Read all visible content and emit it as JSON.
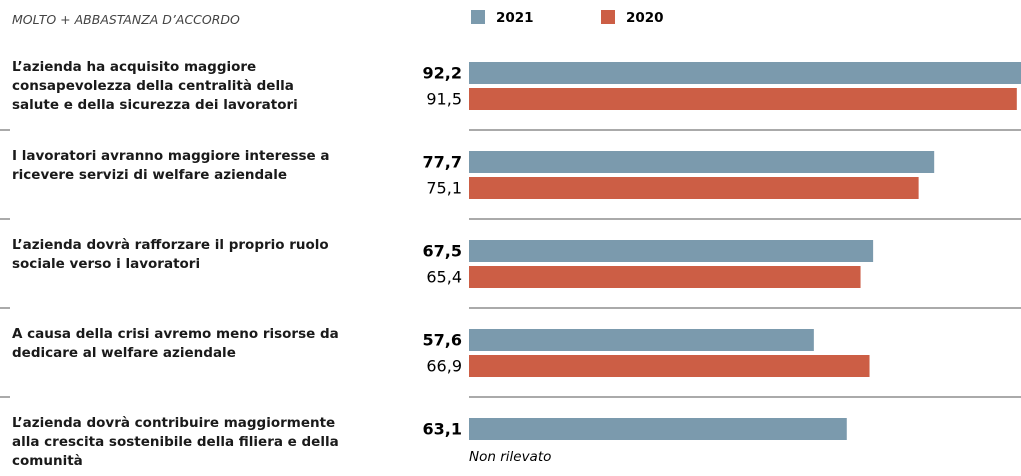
{
  "chart_data": {
    "type": "bar",
    "orientation": "horizontal",
    "subtitle": "MOLTO + ABBASTANZA D’ACCORDO",
    "categories": [
      "L’azienda ha acquisito maggiore consapevolezza della centralità della salute e della sicurezza dei  lavoratori",
      "I lavoratori avranno maggiore interesse a ricevere servizi di welfare aziendale",
      "L’azienda dovrà rafforzare il proprio ruolo sociale verso i lavoratori",
      "A causa della crisi avremo meno risorse da dedicare al welfare aziendale",
      "L’azienda dovrà contribuire maggiormente alla crescita sostenibile della filiera e della comunità"
    ],
    "series": [
      {
        "name": "2021",
        "color": "#7b9aad",
        "values": [
          92.2,
          77.7,
          67.5,
          57.6,
          63.1
        ],
        "value_labels": [
          "92,2",
          "77,7",
          "67,5",
          "57,6",
          "63,1"
        ]
      },
      {
        "name": "2020",
        "color": "#cc5e45",
        "values": [
          91.5,
          75.1,
          65.4,
          66.9,
          null
        ],
        "value_labels": [
          "91,5",
          "75,1",
          "65,4",
          "66,9",
          null
        ]
      }
    ],
    "annotation": "Non rilevato"
  }
}
